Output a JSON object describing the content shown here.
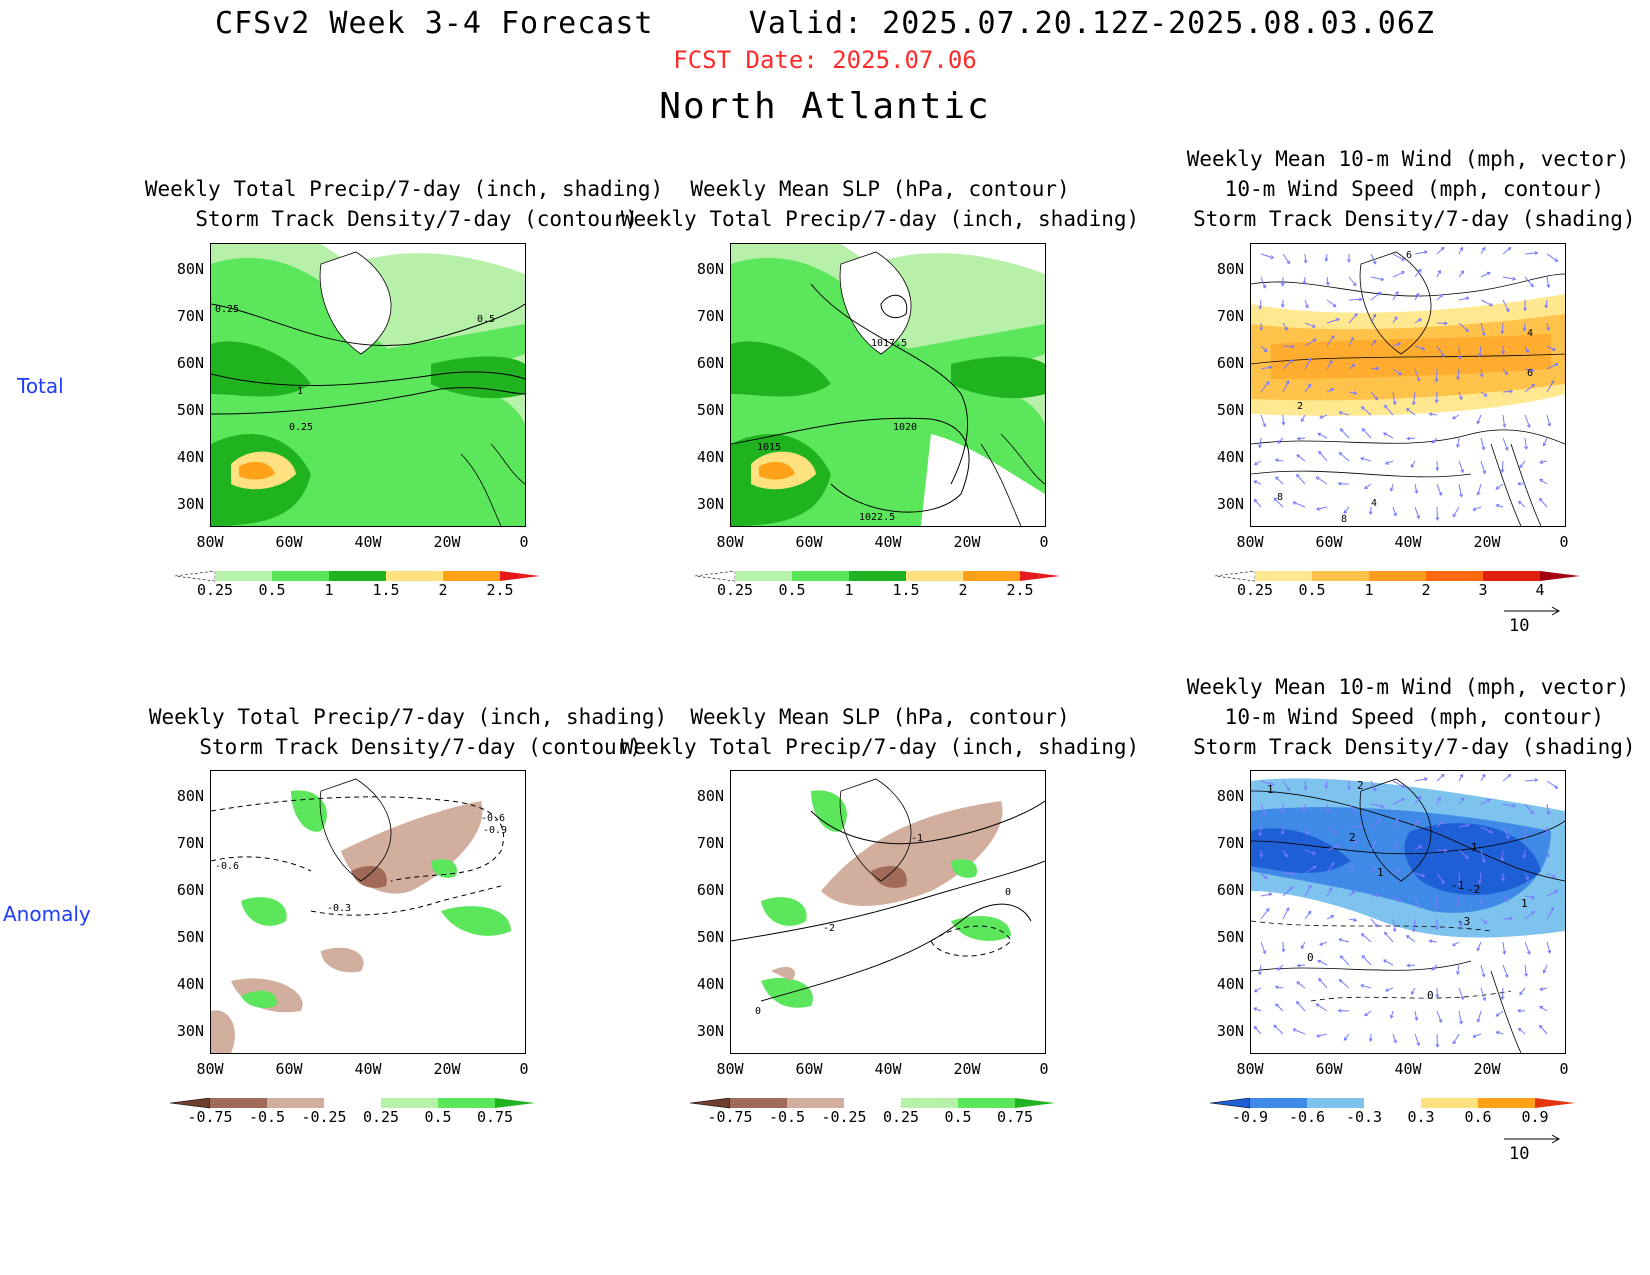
{
  "header": {
    "title": "CFSv2 Week 3-4 Forecast     Valid: 2025.07.20.12Z-2025.08.03.06Z",
    "fcst_date": "FCST Date: 2025.07.06",
    "region": "North Atlantic"
  },
  "rows": {
    "total": "Total",
    "anomaly": "Anomaly"
  },
  "axes": {
    "lat_ticks": [
      "80N",
      "70N",
      "60N",
      "50N",
      "40N",
      "30N"
    ],
    "lon_ticks": [
      "80W",
      "60W",
      "40W",
      "20W",
      "0"
    ]
  },
  "panels": {
    "p1": {
      "title": "Weekly Total Precip/7-day (inch, shading)\n  Storm Track Density/7-day (contour)",
      "contour_labels": [
        "0.25",
        "0.5",
        "1",
        "0.25"
      ]
    },
    "p2": {
      "title": "Weekly Mean SLP (hPa, contour)\nWeekly Total Precip/7-day (inch, shading)",
      "contour_labels": [
        "1017.5",
        "1020",
        "1015",
        "1022.5"
      ]
    },
    "p3": {
      "title": "Weekly Mean 10-m Wind (mph, vector)\n 10-m Wind Speed (mph, contour)\n Storm Track Density/7-day (shading)",
      "contour_labels": [
        "6",
        "4",
        "6",
        "2",
        "8",
        "4",
        "8"
      ]
    },
    "p4": {
      "title": "Weekly Total Precip/7-day (inch, shading)\n  Storm Track Density/7-day (contour)",
      "contour_labels": [
        "-0.6",
        "-0.9",
        "-0.6",
        "-0.3"
      ]
    },
    "p5": {
      "title": "Weekly Mean SLP (hPa, contour)\nWeekly Total Precip/7-day (inch, shading)",
      "contour_labels": [
        "-1",
        "0",
        "-2",
        "0"
      ]
    },
    "p6": {
      "title": "Weekly Mean 10-m Wind (mph, vector)\n 10-m Wind Speed (mph, contour)\n Storm Track Density/7-day (shading)",
      "contour_labels": [
        "1",
        "2",
        "2",
        "1",
        "1",
        "-1",
        "-2",
        "1",
        "-3",
        "0",
        "0"
      ]
    }
  },
  "colorbars": {
    "precip_total": {
      "labels": [
        "0.25",
        "0.5",
        "1",
        "1.5",
        "2",
        "2.5"
      ],
      "colors": [
        "#ffffff",
        "#b7f0a8",
        "#5ce65c",
        "#1fb41f",
        "#ffe27f",
        "#ffa21a",
        "#e61a1a"
      ]
    },
    "storm_total": {
      "labels": [
        "0.25",
        "0.5",
        "1",
        "2",
        "3",
        "4"
      ],
      "colors": [
        "#ffffff",
        "#ffe88f",
        "#ffc24a",
        "#ff9a1a",
        "#ff6a10",
        "#e0200e",
        "#a5000e"
      ]
    },
    "precip_anom": {
      "labels": [
        "-0.75",
        "-0.5",
        "-0.25",
        "0.25",
        "0.5",
        "0.75"
      ],
      "colors": [
        "#6e3e2e",
        "#a06a58",
        "#d2ae9e",
        "#ffffff",
        "#b7f0a8",
        "#5ce65c",
        "#1fb41f"
      ]
    },
    "storm_anom": {
      "labels": [
        "-0.9",
        "-0.6",
        "-0.3",
        "0.3",
        "0.6",
        "0.9"
      ],
      "colors": [
        "#1f5fd6",
        "#3f8ae6",
        "#7ec2ee",
        "#ffffff",
        "#ffe27f",
        "#ffa21a",
        "#e6350e"
      ]
    }
  },
  "vector_ref": "10",
  "colors": {
    "fcst_date": "#ff2a2a",
    "row_label": "#1f3cff",
    "vectors": "#7a7aff"
  }
}
